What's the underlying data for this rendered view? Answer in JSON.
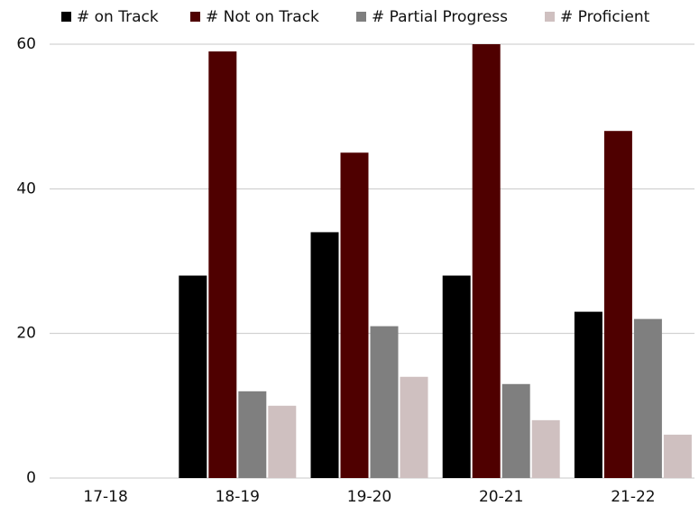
{
  "chart_data": {
    "type": "bar",
    "categories": [
      "17-18",
      "18-19",
      "19-20",
      "20-21",
      "21-22"
    ],
    "series": [
      {
        "name": "# on Track",
        "color": "#000000",
        "values": [
          0,
          28,
          34,
          28,
          23
        ]
      },
      {
        "name": "# Not on Track",
        "color": "#4f0000",
        "values": [
          0,
          59,
          45,
          60,
          48
        ]
      },
      {
        "name": "# Partial Progress",
        "color": "#7f7f7f",
        "values": [
          0,
          12,
          21,
          13,
          22
        ]
      },
      {
        "name": "# Proficient",
        "color": "#cfc0c0",
        "values": [
          0,
          10,
          14,
          8,
          6
        ]
      }
    ],
    "ylim": [
      0,
      60
    ],
    "yticks": [
      0,
      20,
      40,
      60
    ],
    "grid": true,
    "legend": "top"
  }
}
